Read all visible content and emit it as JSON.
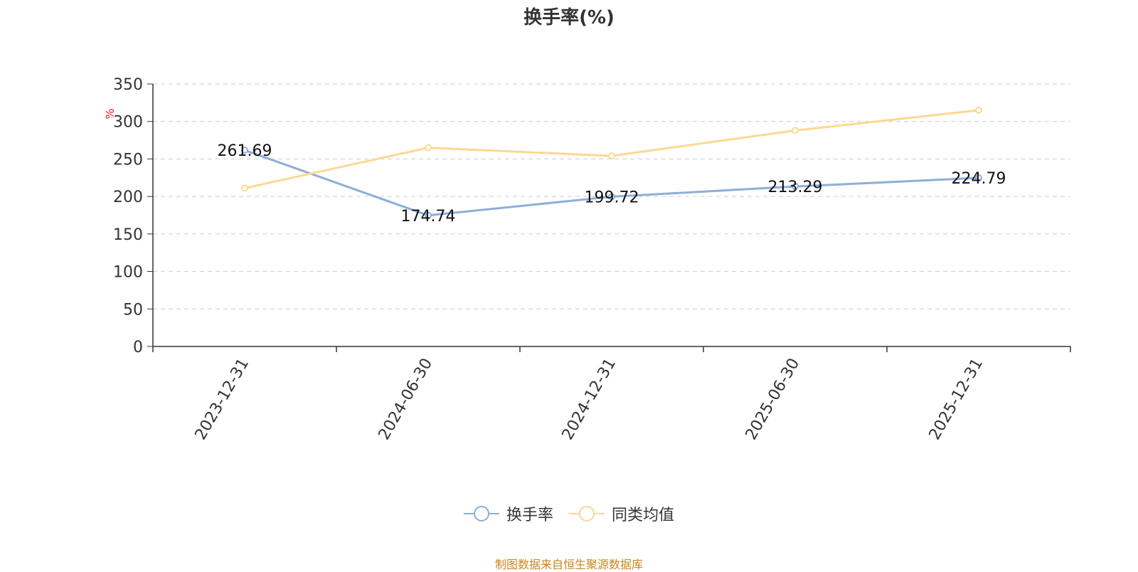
{
  "chart_data": {
    "type": "line",
    "title": "换手率(%)",
    "ylabel": "%",
    "ylim": [
      0,
      350
    ],
    "yticks": [
      "0",
      "50",
      "100",
      "150",
      "200",
      "250",
      "300",
      "350"
    ],
    "categories": [
      "2023-12-31",
      "2024-06-30",
      "2024-12-31",
      "2025-06-30",
      "2025-12-31"
    ],
    "grid": true,
    "legend_position": "bottom",
    "series": [
      {
        "name": "换手率",
        "color": "#8eaed8",
        "values": [
          261.69,
          174.74,
          199.72,
          213.29,
          224.79
        ],
        "labels": [
          "261.69",
          "174.74",
          "199.72",
          "213.29",
          "224.79"
        ]
      },
      {
        "name": "同类均值",
        "color": "#fcd894",
        "values": [
          211,
          265,
          254,
          288,
          315
        ]
      }
    ]
  },
  "footer": {
    "source": "制图数据来自恒生聚源数据库"
  }
}
